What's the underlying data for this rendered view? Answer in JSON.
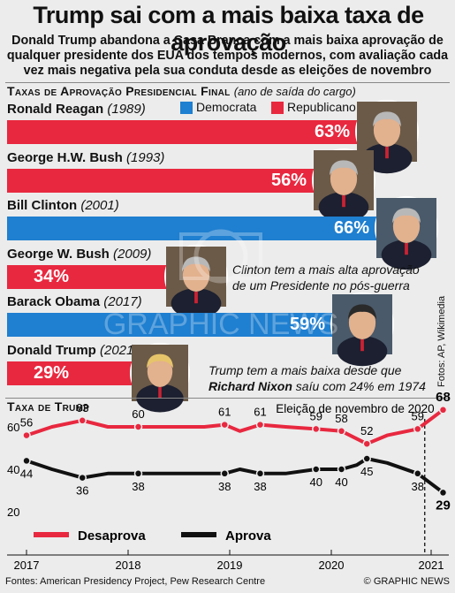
{
  "header": {
    "title": "Trump sai com a mais baixa taxa de aprovação",
    "subtitle": "Donald Trump abandona a Casa Branca com a mais baixa aprovação de qualquer presidente dos EUA dos tempos modernos, com avaliação cada vez mais negativa pela sua conduta desde as eleições de novembro"
  },
  "section1": {
    "heading": "Taxas de Aprovação Presidencial Final",
    "heading_note": "(ano de saída do cargo)",
    "legend": [
      {
        "label": "Democrata",
        "color": "#1f7fd0"
      },
      {
        "label": "Republicano",
        "color": "#e8283f"
      }
    ]
  },
  "presidents": [
    {
      "name": "Ronald Reagan",
      "year": "(1989)",
      "value": 63,
      "label": "63%",
      "party": "Republicano",
      "color": "#e8283f"
    },
    {
      "name": "George H.W. Bush",
      "year": "(1993)",
      "value": 56,
      "label": "56%",
      "party": "Republicano",
      "color": "#e8283f"
    },
    {
      "name": "Bill Clinton",
      "year": "(2001)",
      "value": 66,
      "label": "66%",
      "party": "Democrata",
      "color": "#1f7fd0"
    },
    {
      "name": "George W. Bush",
      "year": "(2009)",
      "value": 34,
      "label": "34%",
      "party": "Republicano",
      "color": "#e8283f"
    },
    {
      "name": "Barack Obama",
      "year": "(2017)",
      "value": 59,
      "label": "59%",
      "party": "Democrata",
      "color": "#1f7fd0"
    },
    {
      "name": "Donald Trump",
      "year": "(2021)",
      "value": 29,
      "label": "29%",
      "party": "Republicano",
      "color": "#e8283f"
    }
  ],
  "notes": {
    "clinton_line1": "Clinton tem a mais alta aprovação",
    "clinton_line2": "de um Presidente no pós-guerra",
    "trump_line1": "Trump tem a mais baixa desde que",
    "trump_nixon": "Richard Nixon",
    "trump_line2_rest": " saíu com 24% em 1974"
  },
  "section2": {
    "heading": "Taxa de Trump",
    "annotation": "Eleição de novembro de 2020"
  },
  "chart_data": [
    {
      "type": "bar",
      "title": "Taxas de Aprovação Presidencial Final",
      "categories": [
        "Ronald Reagan (1989)",
        "George H.W. Bush (1993)",
        "Bill Clinton (2001)",
        "George W. Bush (2009)",
        "Barack Obama (2017)",
        "Donald Trump (2021)"
      ],
      "values": [
        63,
        56,
        66,
        34,
        59,
        29
      ],
      "unit": "%",
      "legend": [
        "Democrata",
        "Republicano"
      ]
    },
    {
      "type": "line",
      "title": "Taxa de Trump",
      "x_ticks": [
        "2017",
        "2018",
        "2019",
        "2020",
        "2021"
      ],
      "ylim": [
        20,
        70
      ],
      "y_ticks": [
        20,
        40,
        60
      ],
      "grid": false,
      "series": [
        {
          "name": "Desaprova",
          "color": "#e8283f",
          "x": [
            2017.0,
            2017.25,
            2017.55,
            2017.8,
            2018.1,
            2018.45,
            2018.75,
            2018.95,
            2019.1,
            2019.3,
            2019.55,
            2019.85,
            2020.1,
            2020.35,
            2020.55,
            2020.85,
            2021.1
          ],
          "values": [
            56,
            60,
            63,
            60,
            60,
            60,
            60,
            61,
            58,
            61,
            60,
            59,
            58,
            52,
            56,
            59,
            68
          ],
          "labels": [
            {
              "x": 2017.0,
              "value": 56
            },
            {
              "x": 2017.55,
              "value": 63
            },
            {
              "x": 2018.1,
              "value": 60
            },
            {
              "x": 2018.95,
              "value": 61
            },
            {
              "x": 2019.3,
              "value": 61
            },
            {
              "x": 2019.85,
              "value": 59
            },
            {
              "x": 2020.1,
              "value": 58
            },
            {
              "x": 2020.35,
              "value": 52
            },
            {
              "x": 2020.85,
              "value": 59
            },
            {
              "x": 2021.1,
              "value": 68
            }
          ]
        },
        {
          "name": "Aprova",
          "color": "#111111",
          "x": [
            2017.0,
            2017.25,
            2017.55,
            2017.8,
            2018.1,
            2018.45,
            2018.75,
            2018.95,
            2019.1,
            2019.3,
            2019.55,
            2019.85,
            2020.1,
            2020.25,
            2020.35,
            2020.55,
            2020.85,
            2021.1
          ],
          "values": [
            44,
            40,
            36,
            38,
            38,
            38,
            38,
            38,
            40,
            38,
            38,
            40,
            40,
            42,
            45,
            43,
            38,
            29
          ],
          "labels": [
            {
              "x": 2017.0,
              "value": 44
            },
            {
              "x": 2017.55,
              "value": 36
            },
            {
              "x": 2018.1,
              "value": 38
            },
            {
              "x": 2018.95,
              "value": 38
            },
            {
              "x": 2019.3,
              "value": 38
            },
            {
              "x": 2019.85,
              "value": 40
            },
            {
              "x": 2020.1,
              "value": 40
            },
            {
              "x": 2020.35,
              "value": 45
            },
            {
              "x": 2020.85,
              "value": 38
            },
            {
              "x": 2021.1,
              "value": 29
            }
          ]
        }
      ],
      "annotation": {
        "x": 2020.85,
        "text": "Eleição de novembro de 2020"
      }
    }
  ],
  "credits": {
    "photos": "Fotos: AP, Wikimedia",
    "sources": "Fontes: American Presidency Project, Pew Research Centre",
    "brand": "© GRAPHIC NEWS",
    "watermark": "GRAPHIC NEWS"
  }
}
